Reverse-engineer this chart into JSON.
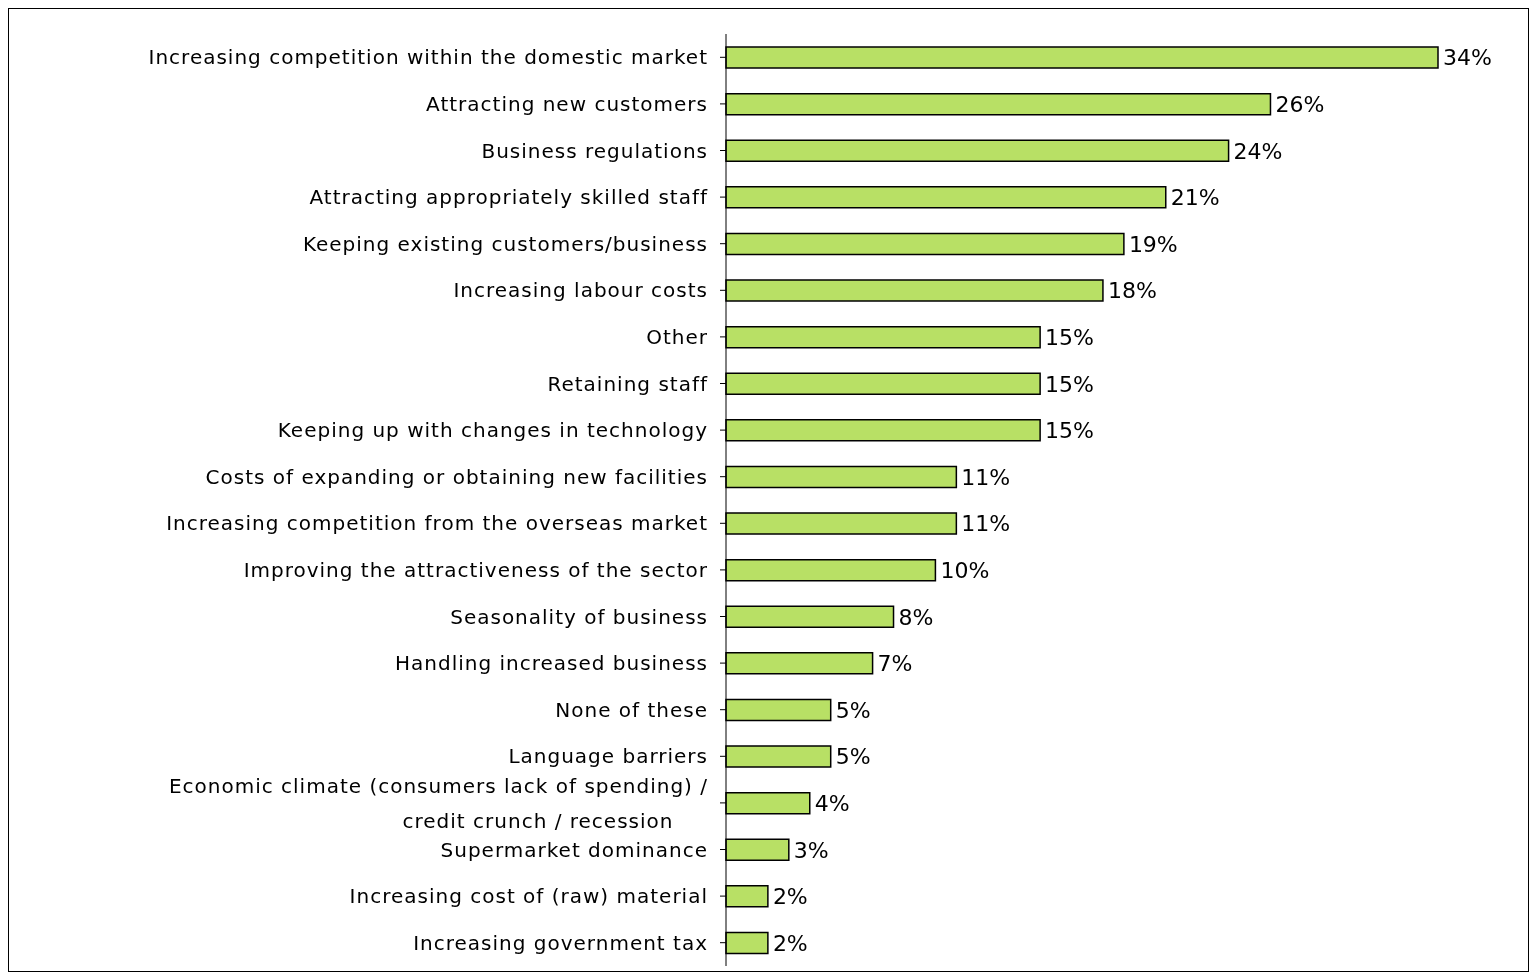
{
  "chart_data": {
    "type": "bar",
    "orientation": "horizontal",
    "color": "#b8e065",
    "categories": [
      "Increasing competition within the domestic market",
      "Attracting new customers",
      "Business regulations",
      "Attracting appropriately skilled staff",
      "Keeping existing customers/business",
      "Increasing labour costs",
      "Other",
      "Retaining staff",
      "Keeping up with changes in technology",
      "Costs of expanding or obtaining new facilities",
      "Increasing competition from the overseas market",
      "Improving the attractiveness of the sector",
      "Seasonality of business",
      "Handling increased business",
      "None of these",
      "Language barriers",
      "Economic climate (consumers lack of spending) / credit crunch / recession",
      "Supermarket dominance",
      "Increasing cost of (raw) material",
      "Increasing government tax"
    ],
    "values": [
      34,
      26,
      24,
      21,
      19,
      18,
      15,
      15,
      15,
      11,
      11,
      10,
      8,
      7,
      5,
      5,
      4,
      3,
      2,
      2
    ],
    "value_labels": [
      "34%",
      "26%",
      "24%",
      "21%",
      "19%",
      "18%",
      "15%",
      "15%",
      "15%",
      "11%",
      "11%",
      "10%",
      "8%",
      "7%",
      "5%",
      "5%",
      "4%",
      "3%",
      "2%",
      "2%"
    ],
    "grid": false,
    "legend": false
  }
}
